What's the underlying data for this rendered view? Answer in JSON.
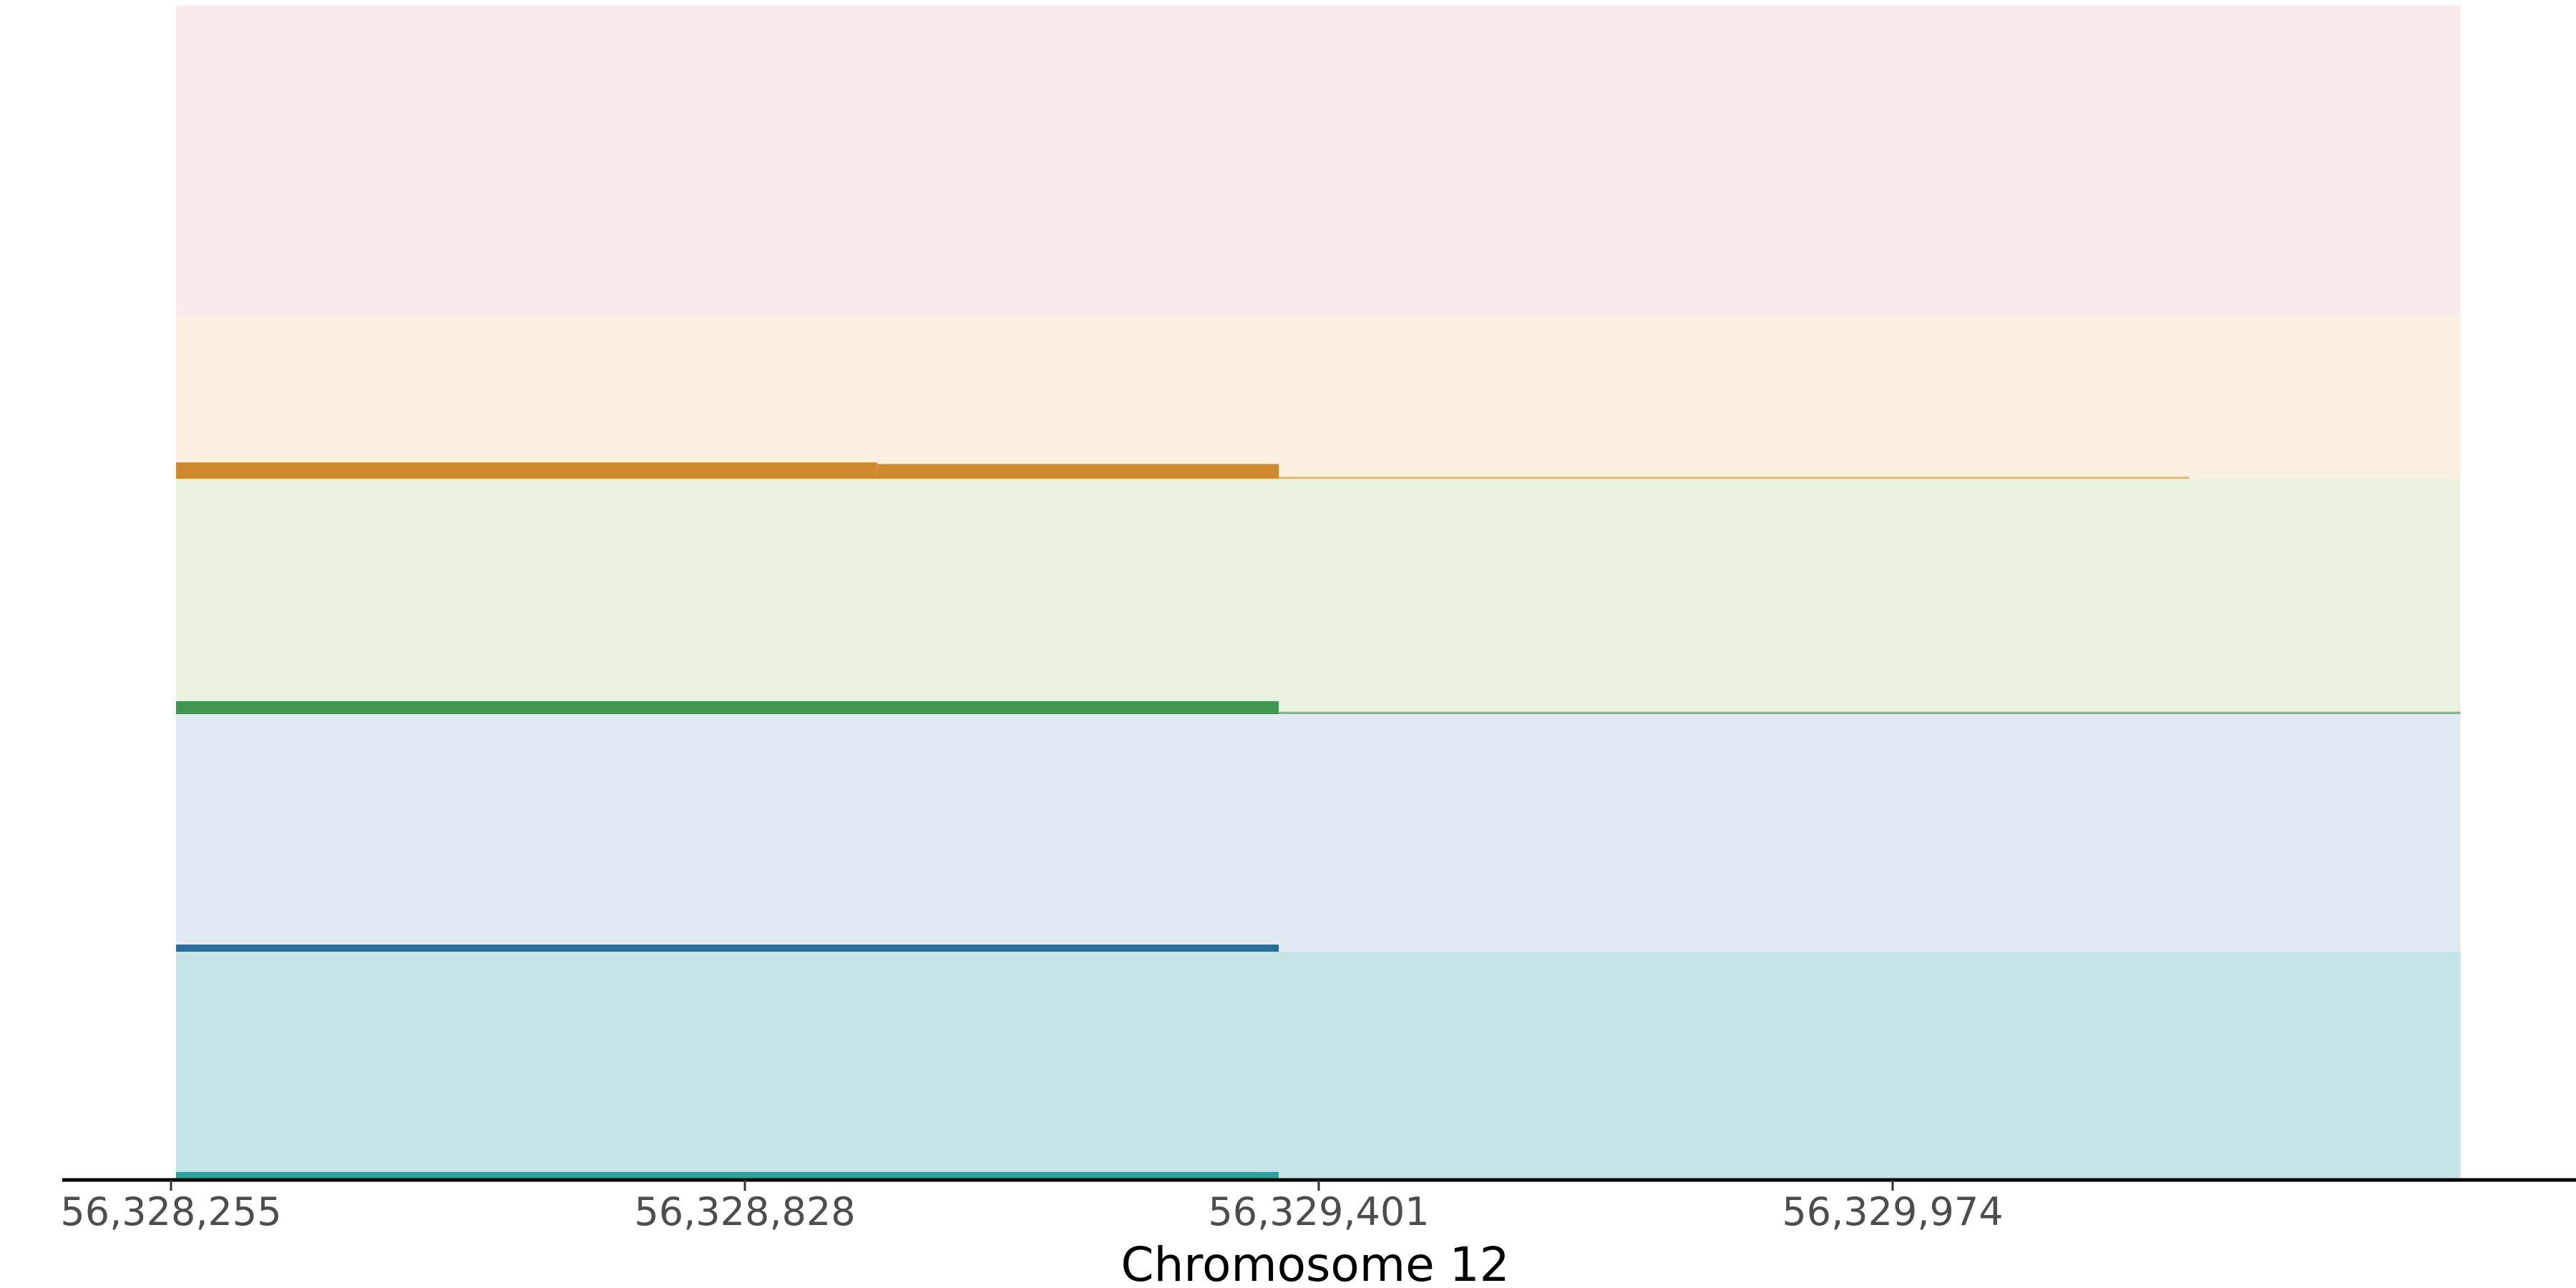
{
  "chart_data": {
    "type": "area",
    "xlabel": "Chromosome 12",
    "xlim": [
      56328260,
      56330541
    ],
    "xticks": [
      56328255,
      56328828,
      56329401,
      56329974
    ],
    "xtick_labels": [
      "56,328,255",
      "56,328,828",
      "56,329,401",
      "56,329,974"
    ],
    "ylim": [
      0,
      1
    ],
    "grid": false,
    "tracks": [
      {
        "background": "#f7ebeb",
        "color": "#c0504d",
        "segments": []
      },
      {
        "background": "#fbefdf",
        "color": "#d08a2e",
        "segments": [
          {
            "start": 56328260,
            "end": 56328960,
            "value": 0.1
          },
          {
            "start": 56328960,
            "end": 56329361,
            "value": 0.09
          },
          {
            "start": 56329361,
            "end": 56330270,
            "value": 0.012
          }
        ]
      },
      {
        "background": "#eaf1de",
        "color": "#3e974e",
        "segments": [
          {
            "start": 56328260,
            "end": 56329361,
            "value": 0.055
          },
          {
            "start": 56329361,
            "end": 56330541,
            "value": 0.01
          }
        ]
      },
      {
        "background": "#e1eaf2",
        "color": "#2a6d9c",
        "segments": [
          {
            "start": 56328260,
            "end": 56329361,
            "value": 0.03
          }
        ]
      },
      {
        "background": "#c4e4e6",
        "color": "#2ca39f",
        "segments": [
          {
            "start": 56328260,
            "end": 56329361,
            "value": 0.035
          }
        ]
      }
    ]
  }
}
